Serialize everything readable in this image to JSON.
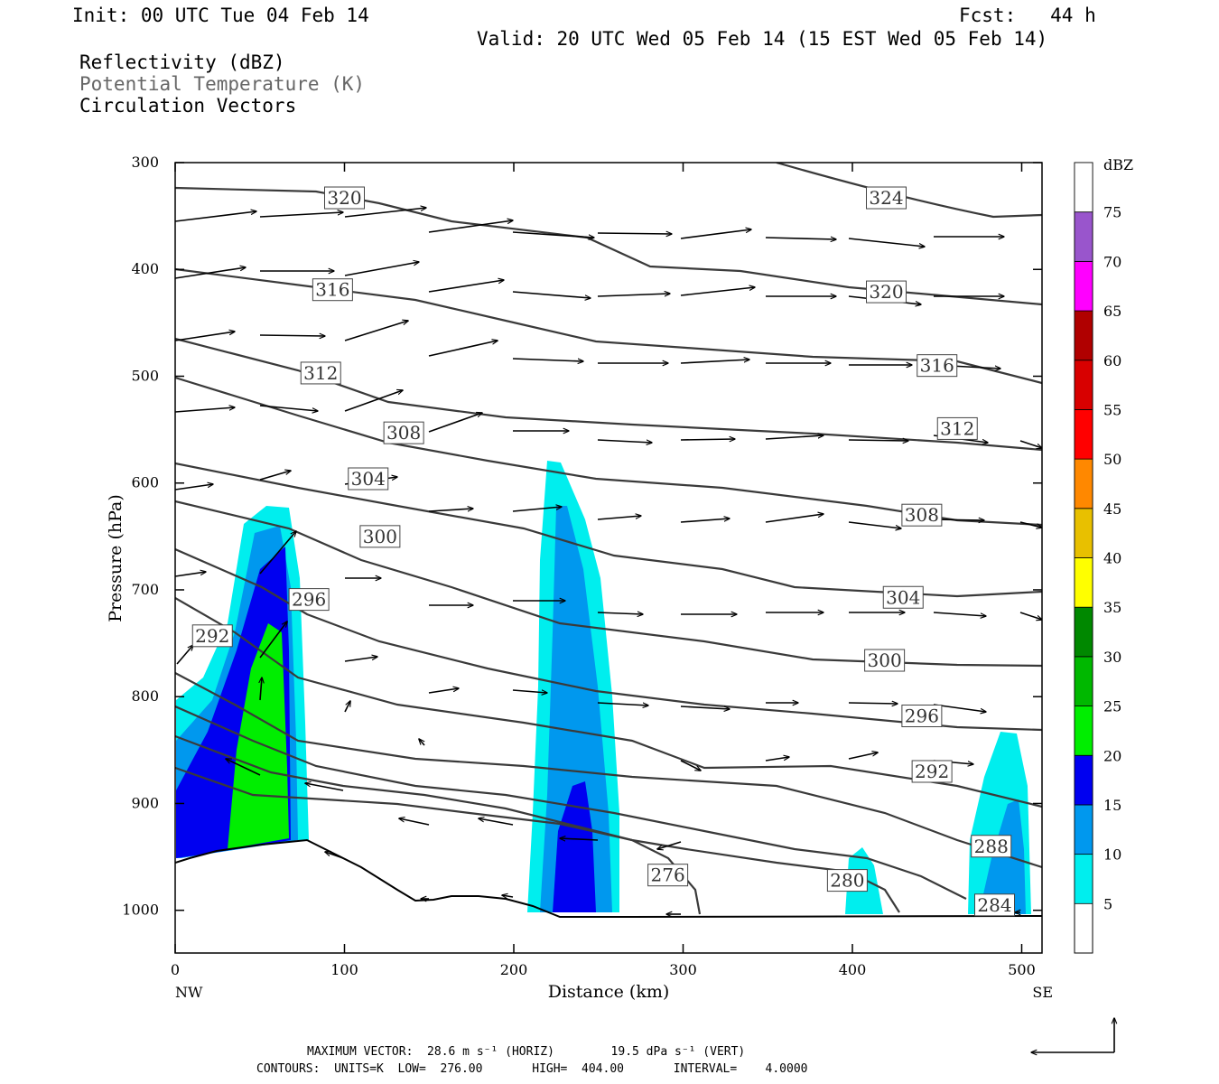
{
  "header": {
    "init": "Init: 00 UTC Tue 04 Feb 14",
    "fcst": "Fcst:   44 h",
    "valid": "Valid: 20 UTC Wed 05 Feb 14 (15 EST Wed 05 Feb 14)",
    "fields": [
      "Reflectivity (dBZ)",
      "Potential Temperature (K)",
      "Circulation Vectors"
    ]
  },
  "footer": {
    "line1": "MAXIMUM VECTOR:  28.6 m s⁻¹ (HORIZ)        19.5 dPa s⁻¹ (VERT)",
    "line2": "CONTOURS:  UNITS=K  LOW=  276.00       HIGH=  404.00       INTERVAL=    4.0000"
  },
  "chart_data": {
    "type": "cross-section",
    "xlabel": "Distance (km)",
    "ylabel": "Pressure (hPa)",
    "x_ticks": [
      0,
      100,
      200,
      300,
      400,
      500
    ],
    "y_ticks": [
      300,
      400,
      500,
      600,
      700,
      800,
      900,
      1000
    ],
    "xlim": [
      0,
      512
    ],
    "ylim": [
      300,
      1040
    ],
    "x_end_labels": {
      "left": "NW",
      "right": "SE"
    },
    "colorbar": {
      "title": "dBZ",
      "levels": [
        5,
        10,
        15,
        20,
        25,
        30,
        35,
        40,
        45,
        50,
        55,
        60,
        65,
        70,
        75
      ],
      "colors": [
        "#00eeee",
        "#0098ee",
        "#0000f0",
        "#00ee00",
        "#00b800",
        "#008800",
        "#ffff00",
        "#e8c000",
        "#ff8800",
        "#ff0000",
        "#d80000",
        "#b00000",
        "#ff00ff",
        "#9955cc",
        "#ffffff"
      ]
    },
    "theta_labels": [
      {
        "value": "324",
        "x": 420,
        "p": 333
      },
      {
        "value": "320",
        "x": 100,
        "p": 333
      },
      {
        "value": "320",
        "x": 420,
        "p": 421
      },
      {
        "value": "316",
        "x": 93,
        "p": 419
      },
      {
        "value": "316",
        "x": 450,
        "p": 490
      },
      {
        "value": "312",
        "x": 86,
        "p": 497
      },
      {
        "value": "312",
        "x": 462,
        "p": 549
      },
      {
        "value": "308",
        "x": 135,
        "p": 553
      },
      {
        "value": "308",
        "x": 441,
        "p": 630
      },
      {
        "value": "304",
        "x": 114,
        "p": 596
      },
      {
        "value": "304",
        "x": 430,
        "p": 707
      },
      {
        "value": "300",
        "x": 121,
        "p": 650
      },
      {
        "value": "300",
        "x": 419,
        "p": 766
      },
      {
        "value": "296",
        "x": 79,
        "p": 709
      },
      {
        "value": "296",
        "x": 441,
        "p": 818
      },
      {
        "value": "292",
        "x": 22,
        "p": 743
      },
      {
        "value": "292",
        "x": 447,
        "p": 870
      },
      {
        "value": "288",
        "x": 482,
        "p": 940
      },
      {
        "value": "284",
        "x": 484,
        "p": 995
      },
      {
        "value": "280",
        "x": 397,
        "p": 972
      },
      {
        "value": "276",
        "x": 291,
        "p": 967
      }
    ]
  }
}
